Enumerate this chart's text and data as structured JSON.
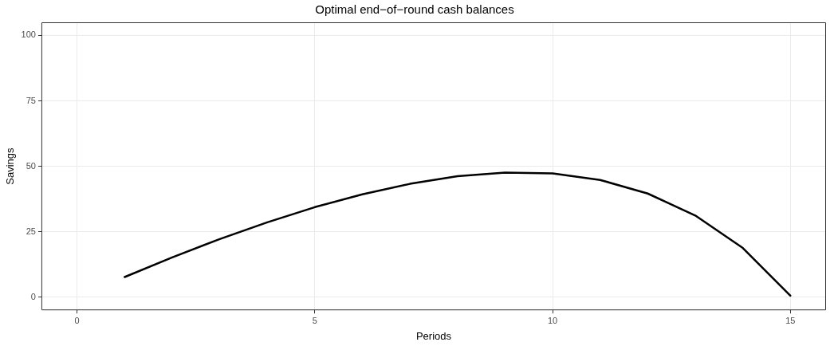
{
  "chart_data": {
    "type": "line",
    "title": "Optimal end−of−round cash balances",
    "xlabel": "Periods",
    "ylabel": "Savings",
    "x": [
      1,
      2,
      3,
      4,
      5,
      6,
      7,
      8,
      9,
      10,
      11,
      12,
      13,
      14,
      15
    ],
    "series": [
      {
        "color": "#000000",
        "values": [
          7.7,
          15.2,
          22.2,
          28.6,
          34.4,
          39.3,
          43.3,
          46.2,
          47.6,
          47.3,
          44.8,
          39.6,
          31.2,
          18.8,
          0.6
        ]
      }
    ],
    "xlim": [
      -0.75,
      15.75
    ],
    "xticks": [
      0,
      5,
      10,
      15
    ],
    "ylim": [
      -5,
      105
    ],
    "yticks": [
      0,
      25,
      50,
      75,
      100
    ],
    "grid": true,
    "legend": false,
    "marker": "none",
    "line_style": "solid"
  }
}
